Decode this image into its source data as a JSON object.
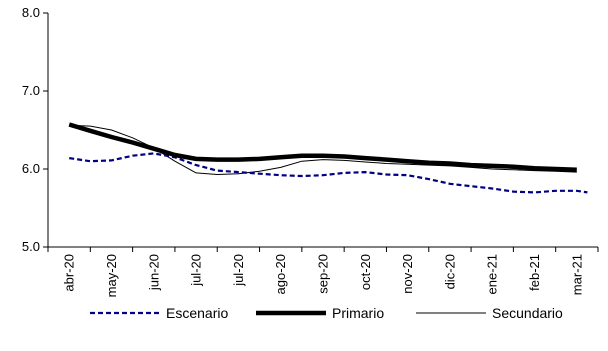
{
  "chart_data": {
    "type": "line",
    "title": "",
    "xlabel": "",
    "ylabel": "",
    "categories": [
      "abr-20",
      "may-20",
      "jun-20",
      "jul-20",
      "jul-20",
      "ago-20",
      "sep-20",
      "oct-20",
      "nov-20",
      "dic-20",
      "ene-21",
      "feb-21",
      "mar-21"
    ],
    "ylim": [
      5.0,
      8.0
    ],
    "yticks": [
      5.0,
      6.0,
      7.0,
      8.0
    ],
    "ytick_labels": [
      "5.0",
      "6.0",
      "7.0",
      "8.0"
    ],
    "grid": false,
    "legend_position": "bottom",
    "series": [
      {
        "name": "Escenario",
        "color": "#000080",
        "style": "dashed",
        "x": [
          0,
          0.5,
          1,
          1.5,
          2,
          2.5,
          3,
          3.5,
          4,
          4.5,
          5,
          5.5,
          6,
          6.5,
          7,
          7.5,
          8,
          8.5,
          9,
          9.5,
          10,
          10.5,
          11,
          11.5,
          12,
          12.25
        ],
        "values": [
          6.14,
          6.1,
          6.11,
          6.17,
          6.2,
          6.15,
          6.05,
          5.98,
          5.96,
          5.94,
          5.92,
          5.91,
          5.92,
          5.95,
          5.96,
          5.93,
          5.92,
          5.87,
          5.81,
          5.78,
          5.75,
          5.71,
          5.7,
          5.72,
          5.72,
          5.7
        ]
      },
      {
        "name": "Primario",
        "color": "#000000",
        "style": "thick",
        "x": [
          0,
          0.5,
          1,
          1.5,
          2,
          2.5,
          3,
          3.5,
          4,
          4.5,
          5,
          5.5,
          6,
          6.5,
          7,
          7.5,
          8,
          8.5,
          9,
          9.5,
          10,
          10.5,
          11,
          11.5,
          12
        ],
        "values": [
          6.57,
          6.49,
          6.41,
          6.34,
          6.26,
          6.18,
          6.13,
          6.12,
          6.12,
          6.13,
          6.15,
          6.17,
          6.17,
          6.16,
          6.14,
          6.12,
          6.1,
          6.08,
          6.07,
          6.05,
          6.04,
          6.03,
          6.01,
          6.0,
          5.99
        ]
      },
      {
        "name": "Secundario",
        "color": "#000000",
        "style": "thin",
        "x": [
          0,
          0.5,
          1,
          1.5,
          2,
          2.5,
          3,
          3.5,
          4,
          4.5,
          5,
          5.5,
          6,
          6.5,
          7,
          7.5,
          8,
          8.5,
          9,
          9.5,
          10,
          10.5,
          11,
          11.5,
          12
        ],
        "values": [
          6.56,
          6.55,
          6.5,
          6.4,
          6.27,
          6.1,
          5.95,
          5.93,
          5.94,
          5.97,
          6.02,
          6.1,
          6.12,
          6.11,
          6.09,
          6.07,
          6.06,
          6.05,
          6.04,
          6.02,
          6.0,
          5.99,
          5.98,
          5.97,
          5.96
        ]
      }
    ]
  }
}
